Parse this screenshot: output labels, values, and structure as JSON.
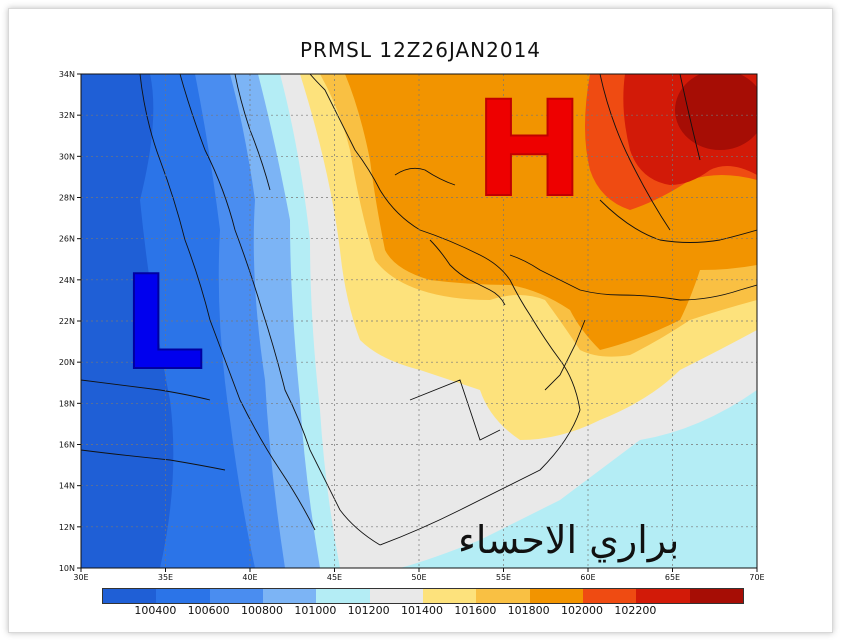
{
  "map": {
    "title": "PRMSL 12Z26JAN2014",
    "lat_labels": [
      "34N",
      "32N",
      "30N",
      "28N",
      "26N",
      "24N",
      "22N",
      "20N",
      "18N",
      "16N",
      "14N",
      "12N",
      "10N"
    ],
    "lon_labels": [
      "30E",
      "35E",
      "40E",
      "45E",
      "50E",
      "55E",
      "60E",
      "65E",
      "70E"
    ],
    "high_label": "H",
    "low_label": "L",
    "watermark": "براري الاحساء",
    "legend": {
      "colors": [
        "#1f5fd6",
        "#2b74e8",
        "#4a8df0",
        "#7cb4f5",
        "#b4edf5",
        "#e9e9e9",
        "#fde27c",
        "#f9c043",
        "#f29400",
        "#ef4b12",
        "#d21a08",
        "#a60d05"
      ],
      "labels": [
        "100400",
        "100600",
        "100800",
        "101000",
        "101200",
        "101400",
        "101600",
        "101800",
        "102000",
        "102200"
      ]
    },
    "colors": {
      "high": "#ee0000",
      "low": "#0000ee"
    }
  }
}
